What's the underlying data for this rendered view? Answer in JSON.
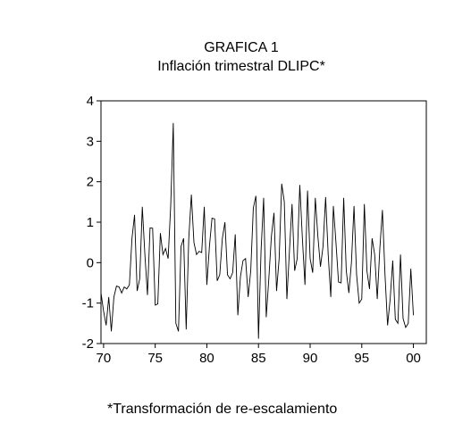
{
  "chart_data": {
    "type": "line",
    "title": "GRAFICA 1",
    "subtitle": "Inflación trimestral DLIPC*",
    "footnote": "*Transformación de re-escalamiento",
    "xlabel": "",
    "ylabel": "",
    "xlim": [
      1969.75,
      2001.25
    ],
    "ylim": [
      -2,
      4
    ],
    "x_ticks": [
      {
        "value": 1970,
        "label": "70"
      },
      {
        "value": 1975,
        "label": "75"
      },
      {
        "value": 1980,
        "label": "80"
      },
      {
        "value": 1985,
        "label": "85"
      },
      {
        "value": 1990,
        "label": "90"
      },
      {
        "value": 1995,
        "label": "95"
      },
      {
        "value": 2000,
        "label": "00"
      }
    ],
    "y_ticks": [
      {
        "value": -2,
        "label": "-2"
      },
      {
        "value": -1,
        "label": "-1"
      },
      {
        "value": 0,
        "label": "0"
      },
      {
        "value": 1,
        "label": "1"
      },
      {
        "value": 2,
        "label": "2"
      },
      {
        "value": 3,
        "label": "3"
      },
      {
        "value": 4,
        "label": "4"
      }
    ],
    "grid": false,
    "series": [
      {
        "color": "#000000",
        "x_start": 1969.75,
        "x_step": 0.25,
        "values": [
          -0.75,
          -1.2,
          -1.55,
          -0.85,
          -1.7,
          -0.85,
          -0.58,
          -0.6,
          -0.75,
          -0.6,
          -0.65,
          -0.55,
          0.6,
          1.18,
          -0.7,
          -0.4,
          1.38,
          0.2,
          -0.8,
          0.86,
          0.85,
          -1.05,
          -1.02,
          0.73,
          0.2,
          0.35,
          0.1,
          1.4,
          3.45,
          -1.5,
          -1.7,
          0.4,
          0.6,
          -1.65,
          0.6,
          1.68,
          0.5,
          0.2,
          0.28,
          0.25,
          1.38,
          -0.55,
          0.4,
          1.1,
          1.08,
          -0.45,
          -0.3,
          0.6,
          1.0,
          -0.3,
          -0.4,
          -0.25,
          0.7,
          -1.3,
          -0.35,
          0.05,
          0.1,
          -0.85,
          -0.2,
          1.35,
          1.65,
          -1.88,
          0.3,
          1.6,
          -1.35,
          -0.4,
          0.65,
          1.23,
          -0.7,
          0.1,
          1.95,
          1.5,
          -0.9,
          0.3,
          1.45,
          -0.2,
          0.1,
          1.92,
          0.6,
          -0.55,
          1.78,
          0.1,
          -0.25,
          1.6,
          0.65,
          -0.1,
          0.4,
          1.62,
          0.2,
          -0.85,
          1.4,
          0.5,
          -0.48,
          -0.5,
          1.6,
          -0.2,
          -0.75,
          0.0,
          1.4,
          -0.3,
          -1.0,
          -0.9,
          1.45,
          -0.2,
          -0.65,
          0.6,
          0.2,
          -0.9,
          0.35,
          1.3,
          -0.3,
          -1.55,
          -0.9,
          0.05,
          -1.4,
          -1.5,
          0.2,
          -1.38,
          -1.6,
          -1.5,
          -0.15,
          -1.3
        ]
      }
    ]
  }
}
